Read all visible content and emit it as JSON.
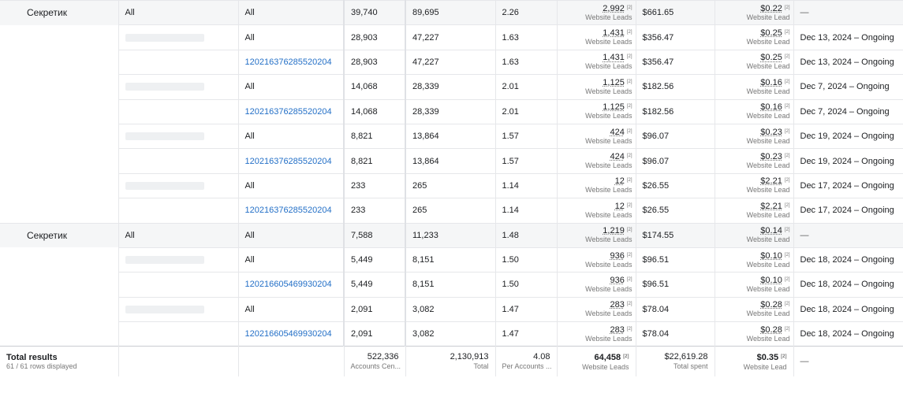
{
  "result_unit": "Website Leads",
  "cpr_unit": "Website Lead",
  "rows": [
    {
      "group": true,
      "name": "Секретик",
      "adset": "All",
      "ad": "All",
      "reach": "39,740",
      "impressions": "89,695",
      "frequency": "2.26",
      "results": "2,992",
      "results_sup": "[2]",
      "spent": "$661.65",
      "cpr": "$0.22",
      "cpr_sup": "[2]",
      "schedule": "—"
    },
    {
      "group": false,
      "name": "",
      "adset": "",
      "ad": "All",
      "reach": "28,903",
      "impressions": "47,227",
      "frequency": "1.63",
      "results": "1,431",
      "results_sup": "[2]",
      "spent": "$356.47",
      "cpr": "$0.25",
      "cpr_sup": "[2]",
      "schedule": "Dec 13, 2024 – Ongoing",
      "redacted": true
    },
    {
      "group": false,
      "name": "",
      "adset": "",
      "ad": "120216376285520204",
      "link": true,
      "reach": "28,903",
      "impressions": "47,227",
      "frequency": "1.63",
      "results": "1,431",
      "results_sup": "[2]",
      "spent": "$356.47",
      "cpr": "$0.25",
      "cpr_sup": "[2]",
      "schedule": "Dec 13, 2024 – Ongoing"
    },
    {
      "group": false,
      "name": "",
      "adset": "",
      "ad": "All",
      "reach": "14,068",
      "impressions": "28,339",
      "frequency": "2.01",
      "results": "1,125",
      "results_sup": "[2]",
      "spent": "$182.56",
      "cpr": "$0.16",
      "cpr_sup": "[2]",
      "schedule": "Dec 7, 2024 – Ongoing",
      "redacted": true
    },
    {
      "group": false,
      "name": "",
      "adset": "",
      "ad": "120216376285520204",
      "link": true,
      "reach": "14,068",
      "impressions": "28,339",
      "frequency": "2.01",
      "results": "1,125",
      "results_sup": "[2]",
      "spent": "$182.56",
      "cpr": "$0.16",
      "cpr_sup": "[2]",
      "schedule": "Dec 7, 2024 – Ongoing"
    },
    {
      "group": false,
      "name": "",
      "adset": "",
      "ad": "All",
      "reach": "8,821",
      "impressions": "13,864",
      "frequency": "1.57",
      "results": "424",
      "results_sup": "[2]",
      "spent": "$96.07",
      "cpr": "$0.23",
      "cpr_sup": "[2]",
      "schedule": "Dec 19, 2024 – Ongoing",
      "redacted": true
    },
    {
      "group": false,
      "name": "",
      "adset": "",
      "ad": "120216376285520204",
      "link": true,
      "reach": "8,821",
      "impressions": "13,864",
      "frequency": "1.57",
      "results": "424",
      "results_sup": "[2]",
      "spent": "$96.07",
      "cpr": "$0.23",
      "cpr_sup": "[2]",
      "schedule": "Dec 19, 2024 – Ongoing"
    },
    {
      "group": false,
      "name": "",
      "adset": "",
      "ad": "All",
      "reach": "233",
      "impressions": "265",
      "frequency": "1.14",
      "results": "12",
      "results_sup": "[2]",
      "spent": "$26.55",
      "cpr": "$2.21",
      "cpr_sup": "[2]",
      "schedule": "Dec 17, 2024 – Ongoing",
      "redacted": true
    },
    {
      "group": false,
      "name": "",
      "adset": "",
      "ad": "120216376285520204",
      "link": true,
      "reach": "233",
      "impressions": "265",
      "frequency": "1.14",
      "results": "12",
      "results_sup": "[2]",
      "spent": "$26.55",
      "cpr": "$2.21",
      "cpr_sup": "[2]",
      "schedule": "Dec 17, 2024 – Ongoing"
    },
    {
      "group": true,
      "name": "Секретик",
      "adset": "All",
      "ad": "All",
      "reach": "7,588",
      "impressions": "11,233",
      "frequency": "1.48",
      "results": "1,219",
      "results_sup": "[2]",
      "spent": "$174.55",
      "cpr": "$0.14",
      "cpr_sup": "[2]",
      "schedule": "—"
    },
    {
      "group": false,
      "name": "",
      "adset": "",
      "ad": "All",
      "reach": "5,449",
      "impressions": "8,151",
      "frequency": "1.50",
      "results": "936",
      "results_sup": "[2]",
      "spent": "$96.51",
      "cpr": "$0.10",
      "cpr_sup": "[2]",
      "schedule": "Dec 18, 2024 – Ongoing",
      "redacted": true
    },
    {
      "group": false,
      "name": "",
      "adset": "",
      "ad": "120216605469930204",
      "link": true,
      "reach": "5,449",
      "impressions": "8,151",
      "frequency": "1.50",
      "results": "936",
      "results_sup": "[2]",
      "spent": "$96.51",
      "cpr": "$0.10",
      "cpr_sup": "[2]",
      "schedule": "Dec 18, 2024 – Ongoing"
    },
    {
      "group": false,
      "name": "",
      "adset": "",
      "ad": "All",
      "reach": "2,091",
      "impressions": "3,082",
      "frequency": "1.47",
      "results": "283",
      "results_sup": "[2]",
      "spent": "$78.04",
      "cpr": "$0.28",
      "cpr_sup": "[2]",
      "schedule": "Dec 18, 2024 – Ongoing",
      "redacted": true
    },
    {
      "group": false,
      "name": "",
      "adset": "",
      "ad": "120216605469930204",
      "link": true,
      "reach": "2,091",
      "impressions": "3,082",
      "frequency": "1.47",
      "results": "283",
      "results_sup": "[2]",
      "spent": "$78.04",
      "cpr": "$0.28",
      "cpr_sup": "[2]",
      "schedule": "Dec 18, 2024 – Ongoing"
    }
  ],
  "total": {
    "title": "Total results",
    "count": "61 / 61 rows displayed",
    "reach": "522,336",
    "reach_label": "Accounts Cen...",
    "impressions": "2,130,913",
    "impressions_label": "Total",
    "frequency": "4.08",
    "frequency_label": "Per Accounts ...",
    "results": "64,458",
    "results_sup": "[2]",
    "results_label": "Website Leads",
    "spent": "$22,619.28",
    "spent_label": "Total spent",
    "cpr": "$0.35",
    "cpr_sup": "[2]",
    "cpr_label": "Website Lead",
    "schedule": "—"
  }
}
